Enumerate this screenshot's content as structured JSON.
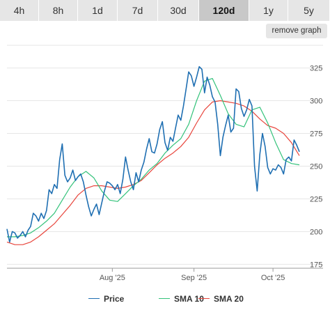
{
  "timeframes": [
    "4h",
    "8h",
    "1d",
    "7d",
    "30d",
    "120d",
    "1y",
    "5y"
  ],
  "active_timeframe": "120d",
  "remove_graph_label": "remove graph",
  "colors": {
    "price": "#1f6fb2",
    "sma10": "#33c27a",
    "sma20": "#e8453c",
    "grid": "#e6e6e6",
    "axis": "#666666"
  },
  "chart_data": {
    "type": "line",
    "x_ticks": [
      "Aug '25",
      "Sep '25",
      "Oct '25"
    ],
    "y_ticks": [
      175,
      200,
      225,
      250,
      275,
      300,
      325
    ],
    "ylim": [
      172,
      345
    ],
    "xlim": [
      "2025-06-22",
      "2025-10-20"
    ],
    "grid": "horizontal",
    "legend_position": "bottom",
    "series": [
      {
        "name": "Price",
        "color": "#1f6fb2",
        "points": [
          [
            "2025-06-22",
            202
          ],
          [
            "2025-06-23",
            192
          ],
          [
            "2025-06-24",
            200
          ],
          [
            "2025-06-25",
            199
          ],
          [
            "2025-06-26",
            195
          ],
          [
            "2025-06-27",
            197
          ],
          [
            "2025-06-28",
            200
          ],
          [
            "2025-06-29",
            196
          ],
          [
            "2025-06-30",
            201
          ],
          [
            "2025-07-01",
            204
          ],
          [
            "2025-07-02",
            214
          ],
          [
            "2025-07-03",
            212
          ],
          [
            "2025-07-04",
            208
          ],
          [
            "2025-07-05",
            214
          ],
          [
            "2025-07-06",
            210
          ],
          [
            "2025-07-07",
            216
          ],
          [
            "2025-07-08",
            232
          ],
          [
            "2025-07-09",
            229
          ],
          [
            "2025-07-10",
            236
          ],
          [
            "2025-07-11",
            233
          ],
          [
            "2025-07-12",
            255
          ],
          [
            "2025-07-13",
            267
          ],
          [
            "2025-07-14",
            243
          ],
          [
            "2025-07-15",
            238
          ],
          [
            "2025-07-16",
            241
          ],
          [
            "2025-07-17",
            247
          ],
          [
            "2025-07-18",
            239
          ],
          [
            "2025-07-19",
            242
          ],
          [
            "2025-07-20",
            244
          ],
          [
            "2025-07-21",
            238
          ],
          [
            "2025-07-22",
            228
          ],
          [
            "2025-07-23",
            219
          ],
          [
            "2025-07-24",
            212
          ],
          [
            "2025-07-25",
            217
          ],
          [
            "2025-07-26",
            221
          ],
          [
            "2025-07-27",
            213
          ],
          [
            "2025-07-28",
            222
          ],
          [
            "2025-07-29",
            231
          ],
          [
            "2025-07-30",
            238
          ],
          [
            "2025-07-31",
            237
          ],
          [
            "2025-08-01",
            235
          ],
          [
            "2025-08-02",
            232
          ],
          [
            "2025-08-03",
            236
          ],
          [
            "2025-08-04",
            229
          ],
          [
            "2025-08-05",
            240
          ],
          [
            "2025-08-06",
            257
          ],
          [
            "2025-08-07",
            247
          ],
          [
            "2025-08-08",
            238
          ],
          [
            "2025-08-09",
            232
          ],
          [
            "2025-08-10",
            245
          ],
          [
            "2025-08-11",
            238
          ],
          [
            "2025-08-12",
            247
          ],
          [
            "2025-08-13",
            253
          ],
          [
            "2025-08-14",
            263
          ],
          [
            "2025-08-15",
            271
          ],
          [
            "2025-08-16",
            261
          ],
          [
            "2025-08-17",
            260
          ],
          [
            "2025-08-18",
            267
          ],
          [
            "2025-08-19",
            278
          ],
          [
            "2025-08-20",
            284
          ],
          [
            "2025-08-21",
            268
          ],
          [
            "2025-08-22",
            262
          ],
          [
            "2025-08-23",
            272
          ],
          [
            "2025-08-24",
            269
          ],
          [
            "2025-08-25",
            279
          ],
          [
            "2025-08-26",
            289
          ],
          [
            "2025-08-27",
            285
          ],
          [
            "2025-08-28",
            296
          ],
          [
            "2025-08-29",
            309
          ],
          [
            "2025-08-30",
            322
          ],
          [
            "2025-08-31",
            319
          ],
          [
            "2025-09-01",
            311
          ],
          [
            "2025-09-02",
            318
          ],
          [
            "2025-09-03",
            326
          ],
          [
            "2025-09-04",
            324
          ],
          [
            "2025-09-05",
            306
          ],
          [
            "2025-09-06",
            318
          ],
          [
            "2025-09-07",
            312
          ],
          [
            "2025-09-08",
            303
          ],
          [
            "2025-09-09",
            299
          ],
          [
            "2025-09-10",
            282
          ],
          [
            "2025-09-11",
            258
          ],
          [
            "2025-09-12",
            272
          ],
          [
            "2025-09-13",
            281
          ],
          [
            "2025-09-14",
            289
          ],
          [
            "2025-09-15",
            276
          ],
          [
            "2025-09-16",
            279
          ],
          [
            "2025-09-17",
            309
          ],
          [
            "2025-09-18",
            307
          ],
          [
            "2025-09-19",
            294
          ],
          [
            "2025-09-20",
            288
          ],
          [
            "2025-09-21",
            293
          ],
          [
            "2025-09-22",
            301
          ],
          [
            "2025-09-23",
            296
          ],
          [
            "2025-09-24",
            250
          ],
          [
            "2025-09-25",
            231
          ],
          [
            "2025-09-26",
            259
          ],
          [
            "2025-09-27",
            275
          ],
          [
            "2025-09-28",
            265
          ],
          [
            "2025-09-29",
            249
          ],
          [
            "2025-09-30",
            244
          ],
          [
            "2025-10-01",
            248
          ],
          [
            "2025-10-02",
            247
          ],
          [
            "2025-10-03",
            251
          ],
          [
            "2025-10-04",
            249
          ],
          [
            "2025-10-05",
            244
          ],
          [
            "2025-10-06",
            255
          ],
          [
            "2025-10-07",
            257
          ],
          [
            "2025-10-08",
            254
          ],
          [
            "2025-10-09",
            270
          ],
          [
            "2025-10-10",
            266
          ],
          [
            "2025-10-11",
            261
          ]
        ]
      },
      {
        "name": "SMA 10",
        "color": "#33c27a",
        "points": [
          [
            "2025-06-22",
            196
          ],
          [
            "2025-06-25",
            196
          ],
          [
            "2025-06-28",
            197
          ],
          [
            "2025-07-01",
            199
          ],
          [
            "2025-07-04",
            203
          ],
          [
            "2025-07-07",
            208
          ],
          [
            "2025-07-10",
            214
          ],
          [
            "2025-07-13",
            224
          ],
          [
            "2025-07-16",
            234
          ],
          [
            "2025-07-19",
            242
          ],
          [
            "2025-07-22",
            246
          ],
          [
            "2025-07-25",
            241
          ],
          [
            "2025-07-28",
            231
          ],
          [
            "2025-07-31",
            224
          ],
          [
            "2025-08-03",
            223
          ],
          [
            "2025-08-06",
            229
          ],
          [
            "2025-08-09",
            235
          ],
          [
            "2025-08-12",
            240
          ],
          [
            "2025-08-15",
            247
          ],
          [
            "2025-08-18",
            252
          ],
          [
            "2025-08-21",
            260
          ],
          [
            "2025-08-24",
            266
          ],
          [
            "2025-08-27",
            271
          ],
          [
            "2025-08-30",
            282
          ],
          [
            "2025-09-02",
            300
          ],
          [
            "2025-09-05",
            315
          ],
          [
            "2025-09-08",
            317
          ],
          [
            "2025-09-11",
            304
          ],
          [
            "2025-09-14",
            290
          ],
          [
            "2025-09-17",
            282
          ],
          [
            "2025-09-20",
            280
          ],
          [
            "2025-09-23",
            293
          ],
          [
            "2025-09-26",
            295
          ],
          [
            "2025-09-29",
            283
          ],
          [
            "2025-10-02",
            268
          ],
          [
            "2025-10-05",
            255
          ],
          [
            "2025-10-08",
            252
          ],
          [
            "2025-10-11",
            251
          ]
        ]
      },
      {
        "name": "SMA 20",
        "color": "#e8453c",
        "points": [
          [
            "2025-06-22",
            192
          ],
          [
            "2025-06-25",
            190
          ],
          [
            "2025-06-28",
            190
          ],
          [
            "2025-07-01",
            192
          ],
          [
            "2025-07-04",
            196
          ],
          [
            "2025-07-07",
            201
          ],
          [
            "2025-07-10",
            206
          ],
          [
            "2025-07-13",
            213
          ],
          [
            "2025-07-16",
            220
          ],
          [
            "2025-07-19",
            228
          ],
          [
            "2025-07-22",
            233
          ],
          [
            "2025-07-25",
            235
          ],
          [
            "2025-07-28",
            235
          ],
          [
            "2025-07-31",
            234
          ],
          [
            "2025-08-03",
            233
          ],
          [
            "2025-08-06",
            234
          ],
          [
            "2025-08-09",
            236
          ],
          [
            "2025-08-12",
            239
          ],
          [
            "2025-08-15",
            245
          ],
          [
            "2025-08-18",
            251
          ],
          [
            "2025-08-21",
            256
          ],
          [
            "2025-08-24",
            260
          ],
          [
            "2025-08-27",
            265
          ],
          [
            "2025-08-30",
            272
          ],
          [
            "2025-09-02",
            283
          ],
          [
            "2025-09-05",
            293
          ],
          [
            "2025-09-08",
            299
          ],
          [
            "2025-09-11",
            300
          ],
          [
            "2025-09-14",
            299
          ],
          [
            "2025-09-17",
            298
          ],
          [
            "2025-09-20",
            296
          ],
          [
            "2025-09-23",
            292
          ],
          [
            "2025-09-26",
            286
          ],
          [
            "2025-09-29",
            281
          ],
          [
            "2025-10-02",
            279
          ],
          [
            "2025-10-05",
            275
          ],
          [
            "2025-10-08",
            268
          ],
          [
            "2025-10-11",
            258
          ]
        ]
      }
    ]
  }
}
